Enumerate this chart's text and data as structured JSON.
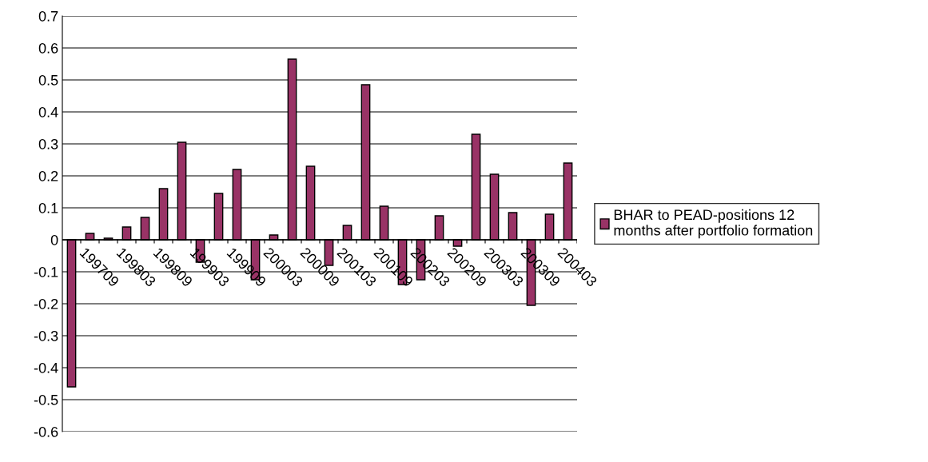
{
  "chart_data": {
    "type": "bar",
    "categories": [
      null,
      "199709",
      null,
      "199803",
      null,
      "199809",
      null,
      "199903",
      null,
      "199909",
      null,
      "200003",
      null,
      "200009",
      null,
      "200103",
      null,
      "200109",
      null,
      "200203",
      null,
      "200209",
      null,
      "200303",
      null,
      "200309",
      null,
      "200403"
    ],
    "series": [
      {
        "name": "BHAR to PEAD-positions 12\nmonths after portfolio formation",
        "color": "#993366",
        "values": [
          -0.46,
          0.02,
          0.005,
          0.04,
          0.07,
          0.16,
          0.305,
          -0.07,
          0.145,
          0.22,
          -0.125,
          0.015,
          0.565,
          0.23,
          -0.08,
          0.045,
          0.485,
          0.105,
          -0.14,
          -0.125,
          0.075,
          -0.02,
          0.33,
          0.205,
          0.085,
          -0.205,
          0.08,
          0.24
        ]
      }
    ],
    "ylim": [
      -0.6,
      0.7
    ],
    "yticks": [
      -0.6,
      -0.5,
      -0.4,
      -0.3,
      -0.2,
      -0.1,
      0,
      0.1,
      0.2,
      0.3,
      0.4,
      0.5,
      0.6,
      0.7
    ],
    "grid": "y",
    "legend": "right"
  }
}
